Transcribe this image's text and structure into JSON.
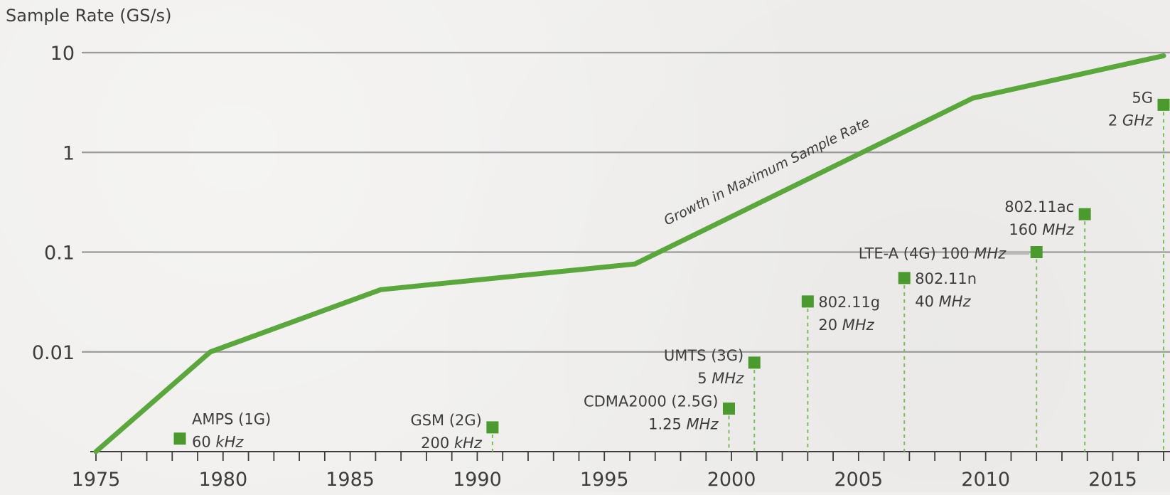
{
  "chart_data": {
    "type": "line",
    "ylabel": "Sample Rate (GS/s)",
    "yscale": "log",
    "ylim": [
      0.001,
      10
    ],
    "xlim": [
      1975,
      2017
    ],
    "y_ticks": [
      {
        "value": 10,
        "label": "10"
      },
      {
        "value": 1,
        "label": "1"
      },
      {
        "value": 0.1,
        "label": "0.1"
      },
      {
        "value": 0.01,
        "label": "0.01"
      }
    ],
    "x_ticks": [
      {
        "value": 1975,
        "label": "1975"
      },
      {
        "value": 1980,
        "label": "1980"
      },
      {
        "value": 1985,
        "label": "1985"
      },
      {
        "value": 1990,
        "label": "1990"
      },
      {
        "value": 1995,
        "label": "1995"
      },
      {
        "value": 2000,
        "label": "2000"
      },
      {
        "value": 2005,
        "label": "2005"
      },
      {
        "value": 2010,
        "label": "2010"
      },
      {
        "value": 2015,
        "label": "2015"
      }
    ],
    "series": [
      {
        "name": "Growth in Maximum Sample Rate",
        "color": "#5aa83c",
        "points": [
          {
            "x": 1975,
            "y": 0.001
          },
          {
            "x": 1979.5,
            "y": 0.01
          },
          {
            "x": 1986.2,
            "y": 0.042
          },
          {
            "x": 1996.2,
            "y": 0.076
          },
          {
            "x": 2009.5,
            "y": 3.5
          },
          {
            "x": 2017,
            "y": 9.3
          }
        ]
      }
    ],
    "annotations": [
      {
        "year": 1978.3,
        "value": 0.00135,
        "line1": "AMPS (1G)",
        "rate": "60",
        "unit": "kHz",
        "label_side": "right",
        "dashed": false
      },
      {
        "year": 1990.6,
        "value": 0.00175,
        "line1": "GSM (2G)",
        "rate": "200",
        "unit": "kHz",
        "label_side": "left",
        "dashed": true
      },
      {
        "year": 1999.9,
        "value": 0.0027,
        "line1": "CDMA2000 (2.5G)",
        "rate": "1.25",
        "unit": "MHz",
        "label_side": "left",
        "dashed": true
      },
      {
        "year": 2000.9,
        "value": 0.0078,
        "line1": "UMTS (3G)",
        "rate": "5",
        "unit": "MHz",
        "label_side": "left",
        "dashed": true
      },
      {
        "year": 2003,
        "value": 0.032,
        "line1": "802.11g",
        "rate": "20",
        "unit": "MHz",
        "label_side": "right",
        "dashed": true
      },
      {
        "year": 2006.8,
        "value": 0.055,
        "line1": "802.11n",
        "rate": "40",
        "unit": "MHz",
        "label_side": "right",
        "dashed": true
      },
      {
        "year": 2012,
        "value": 0.1,
        "line1": "",
        "rate": "LTE-A (4G) 100",
        "unit": "MHz",
        "label_side": "left-inline",
        "dashed": true
      },
      {
        "year": 2013.9,
        "value": 0.24,
        "line1": "802.11ac",
        "rate": "160",
        "unit": "MHz",
        "label_side": "left",
        "dashed": true
      },
      {
        "year": 2017,
        "value": 3.0,
        "line1": "5G",
        "rate": "2",
        "unit": "GHz",
        "label_side": "left",
        "dashed": true
      }
    ],
    "grid": true,
    "marker_color": "#4a9a2e",
    "colors": {
      "trend": "#5aa83c",
      "marker": "#4a9a2e",
      "dash": "#7cbf5a",
      "grid": "#9a9a9a",
      "axis": "#3d3d3d"
    }
  }
}
